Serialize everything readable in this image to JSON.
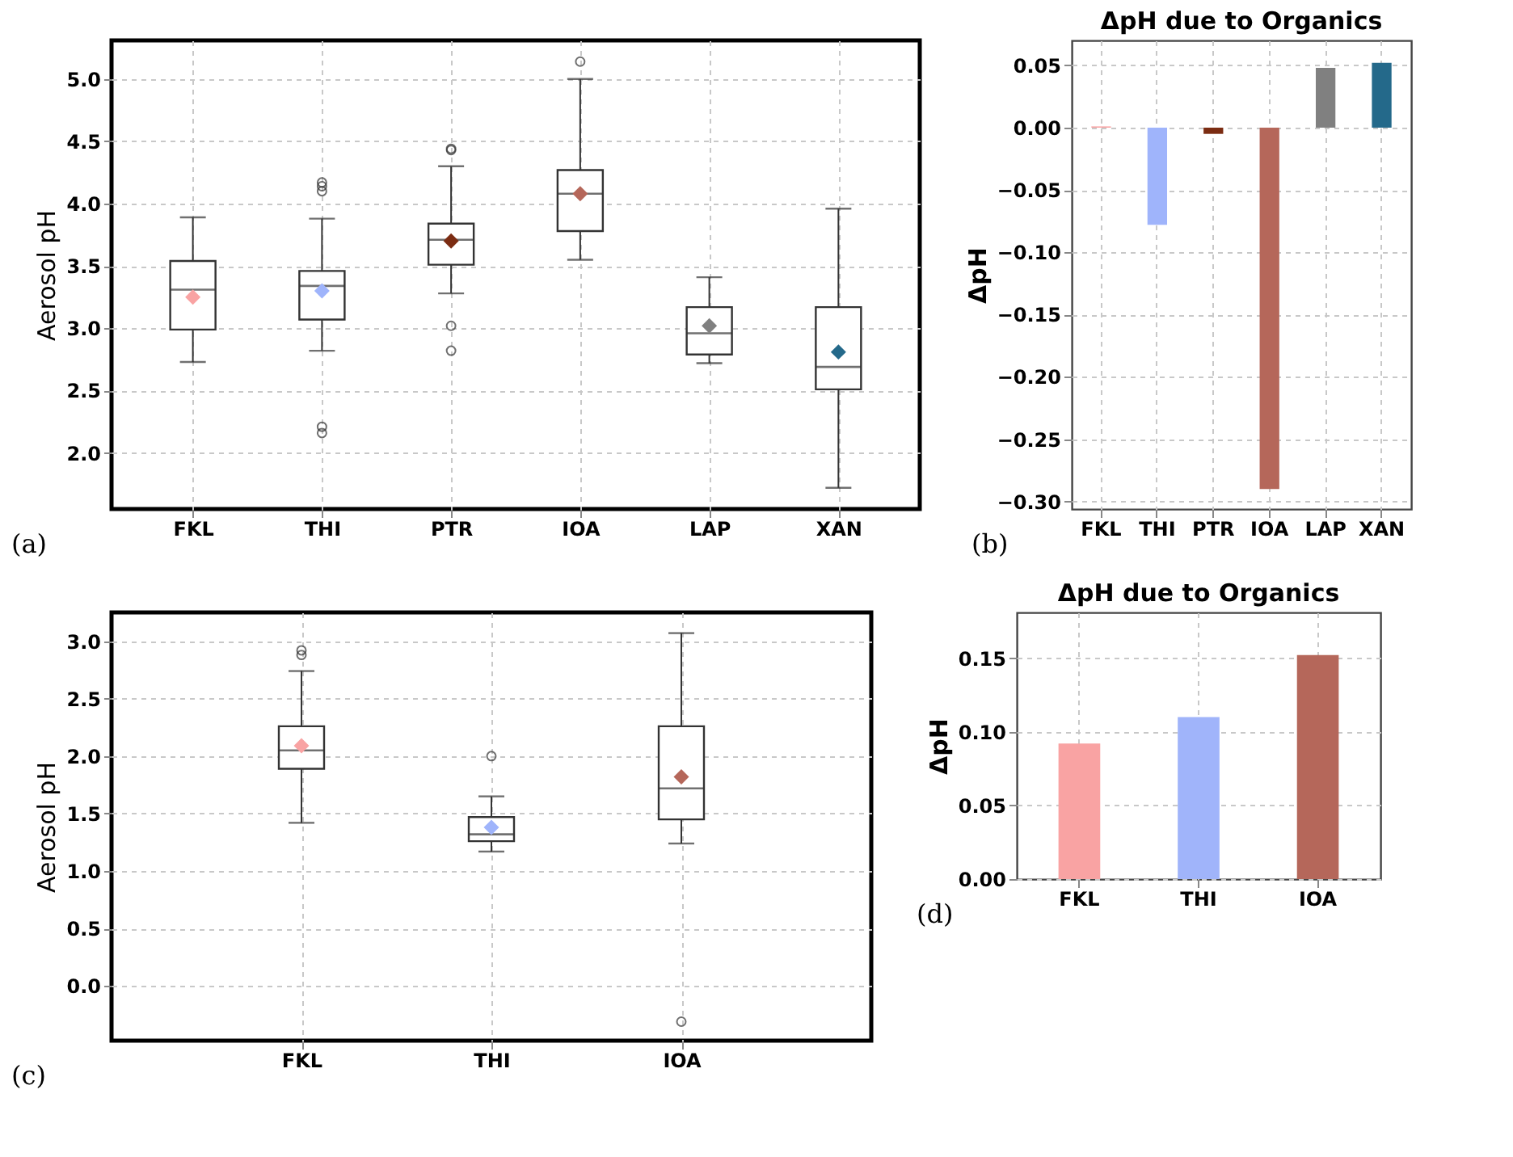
{
  "chart_data": [
    {
      "type": "box",
      "ylabel": "Aerosol pH",
      "categories": [
        "FKL",
        "THI",
        "PTR",
        "IOA",
        "LAP",
        "XAN"
      ],
      "ylim": [
        1.55,
        5.31
      ],
      "yticks": [
        {
          "value": 2,
          "label": "2.0"
        },
        2.5,
        {
          "value": 3,
          "label": "3.0"
        },
        3.5,
        {
          "value": 4,
          "label": "4.0"
        },
        4.5,
        {
          "value": 5,
          "label": "5.0"
        }
      ],
      "grid": true,
      "boxes": [
        {
          "low": 2.73,
          "q1": 2.99,
          "median": 3.31,
          "q3": 3.54,
          "high": 3.89
        },
        {
          "low": 2.82,
          "q1": 3.07,
          "median": 3.34,
          "q3": 3.46,
          "high": 3.88,
          "outliers": [
            4.17,
            4.14,
            4.1,
            2.21,
            2.16
          ]
        },
        {
          "low": 3.28,
          "q1": 3.51,
          "median": 3.71,
          "q3": 3.84,
          "high": 4.3,
          "outliers": [
            4.44,
            4.43,
            3.02,
            2.82
          ]
        },
        {
          "low": 3.55,
          "q1": 3.78,
          "median": 4.08,
          "q3": 4.27,
          "high": 5.0,
          "outliers": [
            5.14
          ]
        },
        {
          "low": 2.72,
          "q1": 2.79,
          "median": 2.96,
          "q3": 3.17,
          "high": 3.41
        },
        {
          "low": 1.72,
          "q1": 2.51,
          "median": 2.69,
          "q3": 3.17,
          "high": 3.96
        }
      ],
      "series": [
        {
          "type": "scatter",
          "marker": "diamond",
          "x": [
            "FKL",
            "THI",
            "PTR",
            "IOA",
            "LAP",
            "XAN"
          ],
          "values": [
            3.25,
            3.3,
            3.7,
            4.08,
            3.02,
            2.81
          ],
          "colors": [
            "#f9a3a3",
            "#9fb4fb",
            "#7b2c12",
            "#b5675a",
            "#808080",
            "#24698a"
          ]
        }
      ],
      "annotations": [
        "(a)"
      ]
    },
    {
      "type": "bar",
      "title": "ΔpH due to Organics",
      "ylabel": "ΔpH",
      "categories": [
        "FKL",
        "THI",
        "PTR",
        "IOA",
        "LAP",
        "XAN"
      ],
      "values": [
        0.001,
        -0.078,
        -0.005,
        -0.29,
        0.048,
        0.052
      ],
      "colors": [
        "#f9a3a3",
        "#9fb4fb",
        "#7b2c12",
        "#b5675a",
        "#808080",
        "#24698a"
      ],
      "ylim": [
        -0.306,
        0.07
      ],
      "yticks": [
        {
          "value": -0.3,
          "label": "−0.30"
        },
        {
          "value": -0.25,
          "label": "−0.25"
        },
        {
          "value": -0.2,
          "label": "−0.20"
        },
        {
          "value": -0.15,
          "label": "−0.15"
        },
        {
          "value": -0.1,
          "label": "−0.10"
        },
        {
          "value": -0.05,
          "label": "−0.05"
        },
        {
          "value": 0,
          "label": "0.00"
        },
        0.05
      ],
      "grid": true,
      "annotations": [
        "(b)"
      ]
    },
    {
      "type": "box",
      "ylabel": "Aerosol pH",
      "categories": [
        "FKL",
        "THI",
        "IOA"
      ],
      "ylim": [
        -0.475,
        3.25
      ],
      "yticks": [
        {
          "value": 0,
          "label": "0.0"
        },
        0.5,
        {
          "value": 1,
          "label": "1.0"
        },
        1.5,
        {
          "value": 2,
          "label": "2.0"
        },
        2.5,
        {
          "value": 3,
          "label": "3.0"
        }
      ],
      "grid": true,
      "boxes": [
        {
          "low": 1.42,
          "q1": 1.89,
          "median": 2.05,
          "q3": 2.26,
          "high": 2.74,
          "outliers": [
            2.92,
            2.88
          ]
        },
        {
          "low": 1.17,
          "q1": 1.26,
          "median": 1.32,
          "q3": 1.47,
          "high": 1.65,
          "outliers": [
            2.0
          ]
        },
        {
          "low": 1.24,
          "q1": 1.45,
          "median": 1.72,
          "q3": 2.26,
          "high": 3.07,
          "outliers": [
            -0.31
          ]
        }
      ],
      "series": [
        {
          "type": "scatter",
          "marker": "diamond",
          "x": [
            "FKL",
            "THI",
            "IOA"
          ],
          "values": [
            2.09,
            1.38,
            1.82
          ],
          "colors": [
            "#f9a3a3",
            "#9fb4fb",
            "#b5675a"
          ]
        }
      ],
      "annotations": [
        "(c)"
      ]
    },
    {
      "type": "bar",
      "title": "ΔpH due to Organics",
      "ylabel": "ΔpH",
      "categories": [
        "FKL",
        "THI",
        "IOA"
      ],
      "values": [
        0.092,
        0.11,
        0.152
      ],
      "colors": [
        "#f9a3a3",
        "#a0b4fa",
        "#b5675a"
      ],
      "ylim": [
        0,
        0.181
      ],
      "yticks": [
        {
          "value": 0,
          "label": "0.00"
        },
        0.05,
        {
          "value": 0.1,
          "label": "0.10"
        },
        0.15
      ],
      "grid": true,
      "annotations": [
        "(d)"
      ]
    }
  ]
}
